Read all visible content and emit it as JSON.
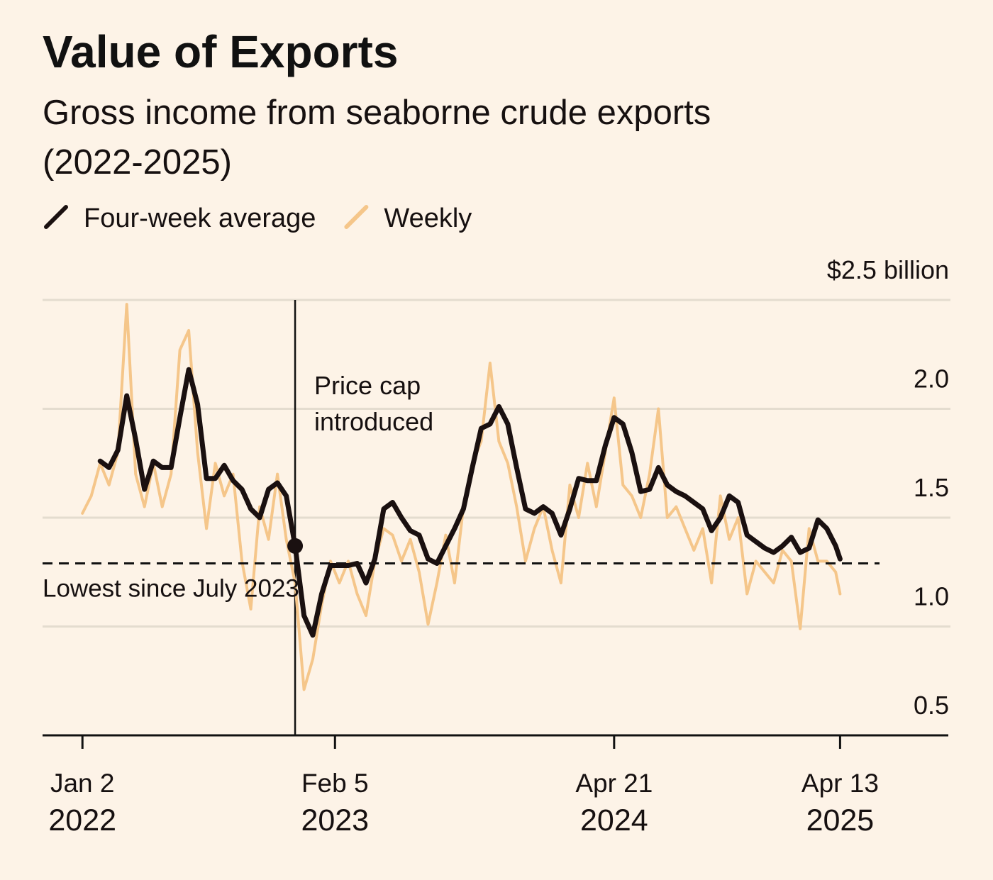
{
  "chart_data": {
    "type": "line",
    "title": "Value of Exports",
    "subtitle": [
      "Gross income from seaborne crude exports",
      "(2022-2025)"
    ],
    "x": [
      "2022-01-02",
      "2022-01-16",
      "2022-01-30",
      "2022-02-13",
      "2022-02-27",
      "2022-03-13",
      "2022-03-27",
      "2022-04-10",
      "2022-04-24",
      "2022-05-08",
      "2022-05-22",
      "2022-06-05",
      "2022-06-19",
      "2022-07-03",
      "2022-07-17",
      "2022-07-31",
      "2022-08-14",
      "2022-08-28",
      "2022-09-11",
      "2022-09-25",
      "2022-10-09",
      "2022-10-23",
      "2022-11-06",
      "2022-11-20",
      "2022-12-04",
      "2022-12-18",
      "2023-01-01",
      "2023-01-15",
      "2023-01-29",
      "2023-02-12",
      "2023-02-26",
      "2023-03-12",
      "2023-03-26",
      "2023-04-09",
      "2023-04-23",
      "2023-05-07",
      "2023-05-21",
      "2023-06-04",
      "2023-06-18",
      "2023-07-02",
      "2023-07-16",
      "2023-07-30",
      "2023-08-13",
      "2023-08-27",
      "2023-09-10",
      "2023-09-24",
      "2023-10-08",
      "2023-10-22",
      "2023-11-05",
      "2023-11-19",
      "2023-12-03",
      "2023-12-17",
      "2023-12-31",
      "2024-01-14",
      "2024-01-28",
      "2024-02-11",
      "2024-02-25",
      "2024-03-10",
      "2024-03-24",
      "2024-04-07",
      "2024-04-21",
      "2024-05-05",
      "2024-05-19",
      "2024-06-02",
      "2024-06-16",
      "2024-06-30",
      "2024-07-14",
      "2024-07-28",
      "2024-08-11",
      "2024-08-25",
      "2024-09-08",
      "2024-09-22",
      "2024-10-06",
      "2024-10-20",
      "2024-11-03",
      "2024-11-17",
      "2024-12-01",
      "2024-12-15",
      "2024-12-29",
      "2025-01-12",
      "2025-01-26",
      "2025-02-09",
      "2025-02-23",
      "2025-03-09",
      "2025-03-23",
      "2025-04-06",
      "2025-04-13"
    ],
    "series": [
      {
        "name": "Four-week average",
        "color": "#1a1010",
        "values": [
          null,
          null,
          1.76,
          1.73,
          1.81,
          2.06,
          1.86,
          1.63,
          1.76,
          1.73,
          1.73,
          1.96,
          2.18,
          2.02,
          1.68,
          1.68,
          1.74,
          1.67,
          1.63,
          1.54,
          1.5,
          1.63,
          1.66,
          1.6,
          1.37,
          1.05,
          0.96,
          1.15,
          1.28,
          1.28,
          1.28,
          1.29,
          1.2,
          1.31,
          1.54,
          1.57,
          1.5,
          1.44,
          1.42,
          1.31,
          1.29,
          1.37,
          1.45,
          1.54,
          1.73,
          1.91,
          1.93,
          2.01,
          1.93,
          1.73,
          1.54,
          1.52,
          1.55,
          1.52,
          1.42,
          1.54,
          1.68,
          1.67,
          1.67,
          1.83,
          1.96,
          1.93,
          1.8,
          1.62,
          1.63,
          1.73,
          1.65,
          1.62,
          1.6,
          1.57,
          1.54,
          1.44,
          1.5,
          1.6,
          1.57,
          1.42,
          1.39,
          1.36,
          1.34,
          1.37,
          1.41,
          1.34,
          1.36,
          1.49,
          1.45,
          1.37,
          1.31
        ]
      },
      {
        "name": "Weekly",
        "color": "#f5c68a",
        "values": [
          1.52,
          1.6,
          1.75,
          1.65,
          1.8,
          2.48,
          1.7,
          1.55,
          1.75,
          1.55,
          1.7,
          2.27,
          2.36,
          1.8,
          1.45,
          1.75,
          1.6,
          1.7,
          1.3,
          1.08,
          1.55,
          1.4,
          1.7,
          1.4,
          1.2,
          0.71,
          0.85,
          1.1,
          1.3,
          1.2,
          1.3,
          1.15,
          1.05,
          1.3,
          1.45,
          1.42,
          1.3,
          1.4,
          1.25,
          1.01,
          1.2,
          1.42,
          1.2,
          1.55,
          1.75,
          1.85,
          2.21,
          1.85,
          1.75,
          1.55,
          1.3,
          1.45,
          1.55,
          1.35,
          1.2,
          1.65,
          1.5,
          1.75,
          1.55,
          1.8,
          2.05,
          1.65,
          1.6,
          1.5,
          1.7,
          2.0,
          1.5,
          1.55,
          1.45,
          1.35,
          1.45,
          1.2,
          1.6,
          1.4,
          1.5,
          1.15,
          1.3,
          1.25,
          1.2,
          1.35,
          1.3,
          0.99,
          1.45,
          1.3,
          1.3,
          1.25,
          1.15
        ]
      }
    ],
    "xlim": [
      "2021-10-31",
      "2025-10-01"
    ],
    "xticks": [
      {
        "value": "2022-01-02",
        "label": [
          "Jan 2",
          "2022"
        ]
      },
      {
        "value": "2023-02-05",
        "label": [
          "Feb 5",
          "2023"
        ]
      },
      {
        "value": "2024-04-21",
        "label": [
          "Apr 21",
          "2024"
        ]
      },
      {
        "value": "2025-04-13",
        "label": [
          "Apr 13",
          "2025"
        ]
      }
    ],
    "ylim": [
      0.5,
      2.5
    ],
    "yticks": [
      0.5,
      {
        "value": 1.0,
        "label": "1.0"
      },
      1.5,
      {
        "value": 2.0,
        "label": "2.0"
      },
      {
        "value": 2.5,
        "label": "$2.5 billion"
      }
    ],
    "grid": true,
    "annotations": {
      "event": {
        "x": "2022-12-04",
        "label": [
          "Price cap",
          "introduced"
        ],
        "point": "chart_data.series.0.values.24"
      },
      "reference": {
        "value": 1.29,
        "label": "Lowest since July 2023"
      }
    }
  }
}
